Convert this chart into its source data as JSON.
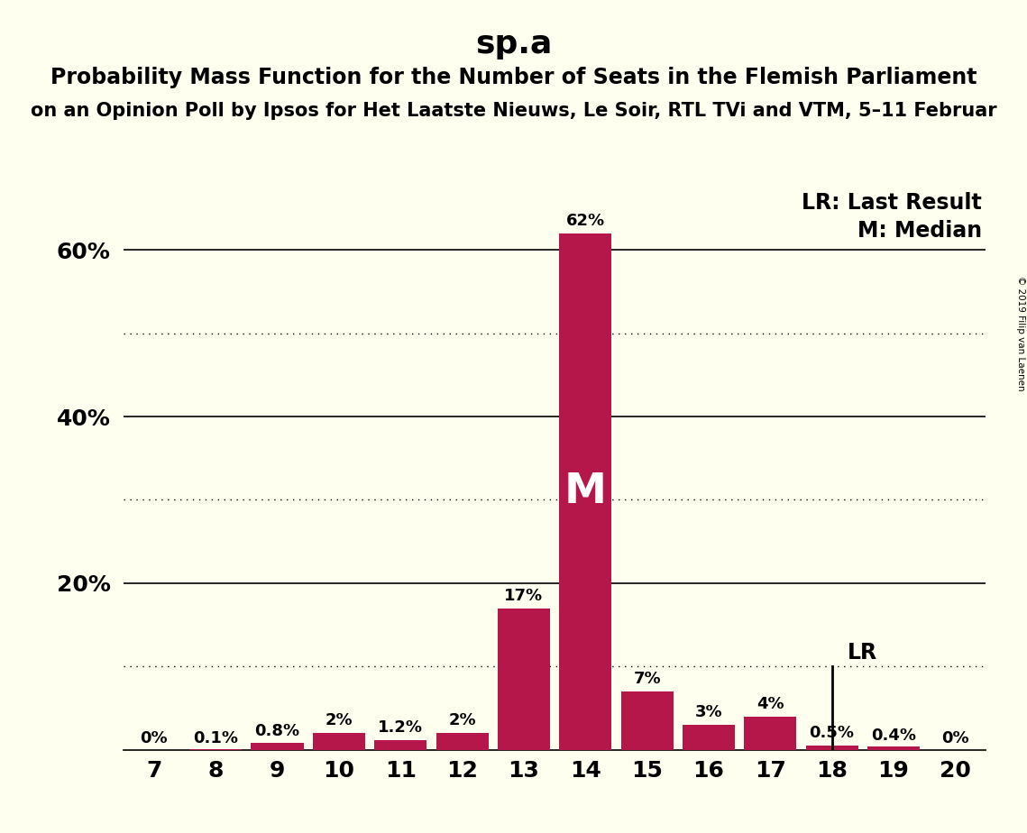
{
  "title": "sp.a",
  "subtitle1": "Probability Mass Function for the Number of Seats in the Flemish Parliament",
  "subtitle2": "on an Opinion Poll by Ipsos for Het Laatste Nieuws, Le Soir, RTL TVi and VTM, 5–11 Februar",
  "copyright": "© 2019 Filip van Laenen",
  "categories": [
    7,
    8,
    9,
    10,
    11,
    12,
    13,
    14,
    15,
    16,
    17,
    18,
    19,
    20
  ],
  "values": [
    0.0,
    0.1,
    0.8,
    2.0,
    1.2,
    2.0,
    17.0,
    62.0,
    7.0,
    3.0,
    4.0,
    0.5,
    0.4,
    0.0
  ],
  "labels": [
    "0%",
    "0.1%",
    "0.8%",
    "2%",
    "1.2%",
    "2%",
    "17%",
    "62%",
    "7%",
    "3%",
    "4%",
    "0.5%",
    "0.4%",
    "0%"
  ],
  "bar_color": "#b5174b",
  "background_color": "#fffff0",
  "median_seat": 14,
  "lr_seat": 18,
  "legend_lr": "LR: Last Result",
  "legend_m": "M: Median",
  "ylabel_labeled_ticks": [
    20,
    40,
    60
  ],
  "ylabel_labeled_strings": [
    "20%",
    "40%",
    "60%"
  ],
  "ylabel_dotted_ticks": [
    10,
    30,
    50
  ],
  "ylim": [
    0,
    68
  ],
  "xlim": [
    6.5,
    20.5
  ],
  "title_fontsize": 26,
  "subtitle1_fontsize": 17,
  "subtitle2_fontsize": 15,
  "tick_fontsize": 18,
  "label_fontsize": 13,
  "legend_fontsize": 17
}
